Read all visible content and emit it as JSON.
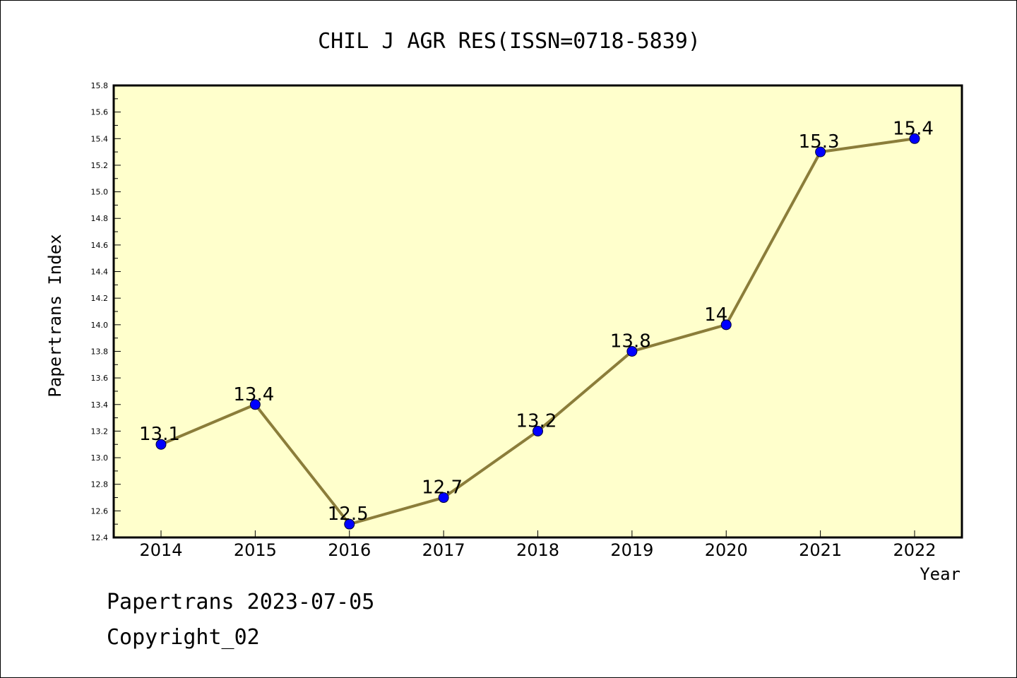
{
  "chart_data": {
    "type": "line",
    "title": "CHIL J AGR RES(ISSN=0718-5839)",
    "xlabel": "Year",
    "ylabel": "Papertrans Index",
    "categories": [
      "2014",
      "2015",
      "2016",
      "2017",
      "2018",
      "2019",
      "2020",
      "2021",
      "2022"
    ],
    "series": [
      {
        "values": [
          13.1,
          13.4,
          12.5,
          12.7,
          13.2,
          13.8,
          14.0,
          15.3,
          15.4
        ],
        "labels": [
          "13.1",
          "13.4",
          "12.5",
          "12.7",
          "13.2",
          "13.8",
          "14",
          "15.3",
          "15.4"
        ]
      }
    ],
    "ylim": [
      12.4,
      15.8
    ],
    "yticks": [
      "12.4",
      "12.6",
      "12.8",
      "13.0",
      "13.2",
      "13.4",
      "13.6",
      "13.8",
      "14.0",
      "14.2",
      "14.4",
      "14.6",
      "14.8",
      "15.0",
      "15.2",
      "15.4",
      "15.6",
      "15.8"
    ],
    "grid": false,
    "colors": {
      "plot_background": "#ffffcc",
      "line": "#8b7d3a",
      "marker": "#0000ff",
      "axes": "#000000"
    }
  },
  "footer": {
    "line1": "Papertrans 2023-07-05",
    "line2": "Copyright_02"
  }
}
